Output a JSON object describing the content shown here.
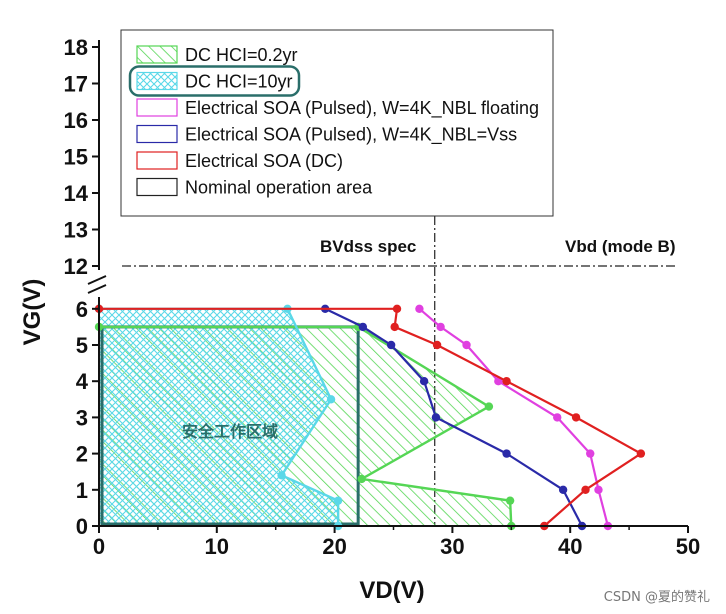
{
  "chart_data": {
    "type": "line",
    "title": "",
    "xlabel": "VD(V)",
    "ylabel": "VG(V)",
    "xlim": [
      0,
      50
    ],
    "x_ticks": [
      0,
      10,
      20,
      30,
      40,
      50
    ],
    "y_ticks_lower": [
      0,
      1,
      2,
      3,
      4,
      5,
      6
    ],
    "y_ticks_upper": [
      12,
      13,
      14,
      15,
      16,
      17,
      18
    ],
    "axis_break": "between 6 and 12",
    "legend": [
      {
        "label": "DC HCI=0.2yr",
        "color": "#55d655",
        "style": "hatch-green"
      },
      {
        "label": "DC HCI=10yr",
        "color": "#5ad8e8",
        "style": "hatch-cyan",
        "highlighted": true
      },
      {
        "label": "Electrical SOA (Pulsed), W=4K_NBL floating",
        "color": "#e040e0",
        "style": "line"
      },
      {
        "label": "Electrical SOA (Pulsed), W=4K_NBL=Vss",
        "color": "#2a2aa8",
        "style": "line"
      },
      {
        "label": "Electrical SOA (DC)",
        "color": "#e02020",
        "style": "line"
      },
      {
        "label": "Nominal operation area",
        "color": "#2a6e6a",
        "style": "box"
      }
    ],
    "series": [
      {
        "name": "DC HCI=0.2yr",
        "color": "#55d655",
        "points": [
          [
            35,
            0
          ],
          [
            34.9,
            0.7
          ],
          [
            22.3,
            1.3
          ],
          [
            33.1,
            3.3
          ],
          [
            22,
            5.5
          ],
          [
            0,
            5.5
          ]
        ]
      },
      {
        "name": "DC HCI=10yr",
        "color": "#5ad8e8",
        "points": [
          [
            20.3,
            0
          ],
          [
            20.3,
            0.7
          ],
          [
            15.5,
            1.4
          ],
          [
            19.7,
            3.5
          ],
          [
            16,
            6
          ],
          [
            0,
            6
          ]
        ]
      },
      {
        "name": "Electrical SOA (Pulsed), W=4K_NBL floating",
        "color": "#e040e0",
        "points": [
          [
            27.2,
            6
          ],
          [
            29,
            5.5
          ],
          [
            31.2,
            5
          ],
          [
            33.9,
            4
          ],
          [
            38.9,
            3
          ],
          [
            41.7,
            2
          ],
          [
            42.4,
            1
          ],
          [
            43.2,
            0
          ]
        ]
      },
      {
        "name": "Electrical SOA (Pulsed), W=4K_NBL=Vss",
        "color": "#2a2aa8",
        "points": [
          [
            19.2,
            6
          ],
          [
            22.4,
            5.5
          ],
          [
            24.8,
            5
          ],
          [
            27.6,
            4
          ],
          [
            28.6,
            3
          ],
          [
            34.6,
            2
          ],
          [
            39.4,
            1
          ],
          [
            41,
            0
          ]
        ]
      },
      {
        "name": "Electrical SOA (DC)",
        "color": "#e02020",
        "points": [
          [
            0,
            6
          ],
          [
            25.3,
            6
          ],
          [
            25.1,
            5.5
          ],
          [
            28.7,
            5
          ],
          [
            34.6,
            4
          ],
          [
            40.5,
            3
          ],
          [
            46,
            2
          ],
          [
            41.3,
            1
          ],
          [
            37.8,
            0
          ]
        ]
      }
    ],
    "nominal_area": {
      "x": [
        0,
        22
      ],
      "y": [
        0,
        5.5
      ]
    },
    "vlines": [
      {
        "x": 28.5,
        "style": "dash-dot"
      }
    ],
    "hlines": [
      {
        "y": 12,
        "style": "dash-dot"
      }
    ],
    "annotations": [
      "BVdss spec",
      "Vbd (mode B)",
      "安全工作区域"
    ]
  },
  "watermark": "CSDN @夏的赞礼"
}
